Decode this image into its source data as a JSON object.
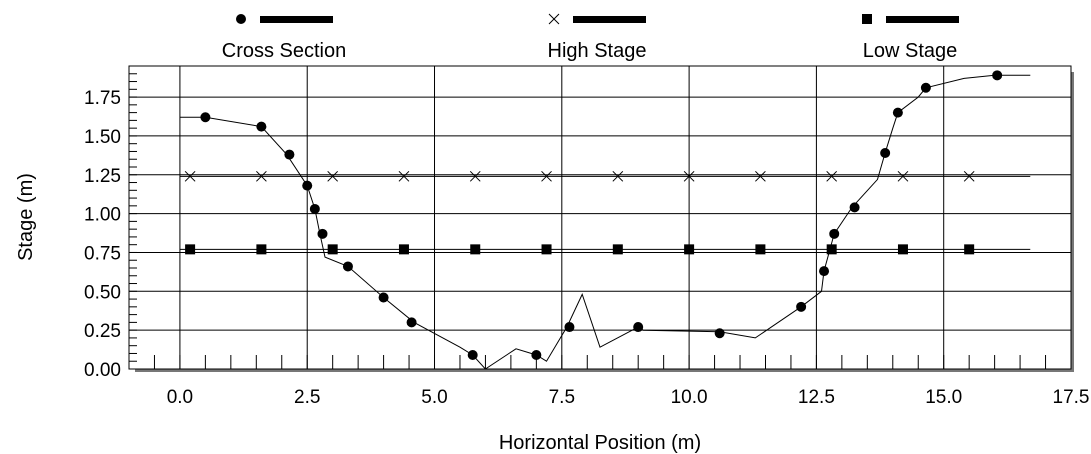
{
  "chart_data": {
    "type": "scatter",
    "title": "",
    "xlabel": "Horizontal Position (m)",
    "ylabel": "Stage (m)",
    "xlim": [
      -1,
      17.5
    ],
    "ylim": [
      0,
      1.95
    ],
    "x_ticks": [
      "0.0",
      "2.5",
      "5.0",
      "7.5",
      "10.0",
      "12.5",
      "15.0",
      "17.5"
    ],
    "y_ticks": [
      "0.00",
      "0.25",
      "0.50",
      "0.75",
      "1.00",
      "1.25",
      "1.50",
      "1.75"
    ],
    "grid": true,
    "legend_position": "top",
    "series": [
      {
        "name": "Cross Section",
        "marker": "circle",
        "color": "#000000",
        "line": [
          [
            0,
            1.62
          ],
          [
            0.5,
            1.62
          ],
          [
            1.6,
            1.56
          ],
          [
            2.1,
            1.38
          ],
          [
            2.5,
            1.18
          ],
          [
            2.65,
            1.03
          ],
          [
            2.75,
            0.87
          ],
          [
            2.85,
            0.72
          ],
          [
            3.3,
            0.66
          ],
          [
            4.0,
            0.46
          ],
          [
            4.6,
            0.3
          ],
          [
            5.5,
            0.14
          ],
          [
            5.75,
            0.09
          ],
          [
            6.0,
            0.0
          ],
          [
            6.6,
            0.13
          ],
          [
            7.0,
            0.09
          ],
          [
            7.2,
            0.05
          ],
          [
            7.6,
            0.27
          ],
          [
            7.9,
            0.48
          ],
          [
            8.25,
            0.14
          ],
          [
            9.0,
            0.27
          ],
          [
            9.1,
            0.25
          ],
          [
            10.6,
            0.24
          ],
          [
            11.3,
            0.2
          ],
          [
            12.2,
            0.4
          ],
          [
            12.6,
            0.5
          ],
          [
            12.65,
            0.63
          ],
          [
            12.85,
            0.87
          ],
          [
            13.2,
            1.04
          ],
          [
            13.7,
            1.22
          ],
          [
            13.85,
            1.39
          ],
          [
            14.0,
            1.55
          ],
          [
            14.1,
            1.65
          ],
          [
            14.5,
            1.75
          ],
          [
            14.65,
            1.81
          ],
          [
            15.4,
            1.87
          ],
          [
            16.0,
            1.89
          ],
          [
            16.7,
            1.89
          ]
        ],
        "points": [
          [
            0.5,
            1.62
          ],
          [
            1.6,
            1.56
          ],
          [
            2.15,
            1.38
          ],
          [
            2.5,
            1.18
          ],
          [
            2.65,
            1.03
          ],
          [
            2.8,
            0.87
          ],
          [
            3.3,
            0.66
          ],
          [
            4.0,
            0.46
          ],
          [
            4.55,
            0.3
          ],
          [
            5.75,
            0.09
          ],
          [
            7.0,
            0.09
          ],
          [
            7.65,
            0.27
          ],
          [
            9.0,
            0.27
          ],
          [
            10.6,
            0.23
          ],
          [
            12.2,
            0.4
          ],
          [
            12.65,
            0.63
          ],
          [
            12.85,
            0.87
          ],
          [
            13.25,
            1.04
          ],
          [
            13.85,
            1.39
          ],
          [
            14.1,
            1.65
          ],
          [
            14.65,
            1.81
          ],
          [
            16.05,
            1.89
          ]
        ]
      },
      {
        "name": "High Stage",
        "marker": "x",
        "color": "#000000",
        "y": 1.24,
        "line_x": [
          0,
          16.7
        ],
        "points_x": [
          0.2,
          1.6,
          3.0,
          4.4,
          5.8,
          7.2,
          8.6,
          10.0,
          11.4,
          12.8,
          14.2,
          15.5
        ]
      },
      {
        "name": "Low Stage",
        "marker": "square",
        "color": "#000000",
        "y": 0.77,
        "line_x": [
          0,
          16.7
        ],
        "points_x": [
          0.2,
          1.6,
          3.0,
          4.4,
          5.8,
          7.2,
          8.6,
          10.0,
          11.4,
          12.8,
          14.2,
          15.5
        ]
      }
    ]
  }
}
